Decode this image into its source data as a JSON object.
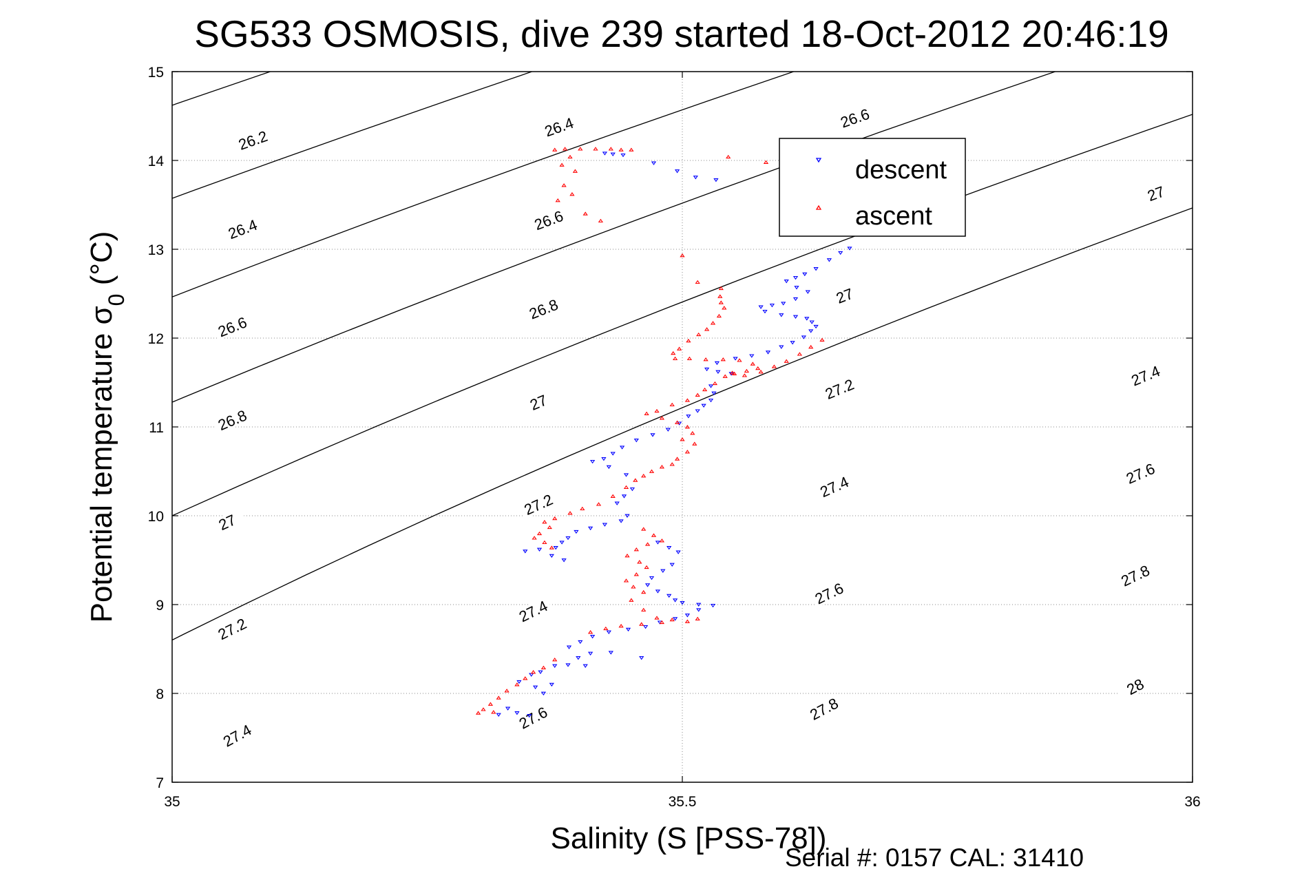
{
  "chart_data": {
    "type": "scatter",
    "title": "SG533 OSMOSIS, dive 239 started 18-Oct-2012 20:46:19",
    "xlabel": "Salinity (S [PSS-78])",
    "ylabel_main": "Potential temperature σ",
    "ylabel_sub": "0",
    "ylabel_unit": " (°C)",
    "xlim": [
      35,
      36
    ],
    "ylim": [
      7,
      15
    ],
    "x_ticks": [
      35,
      35.5,
      36
    ],
    "x_tick_labels": [
      "35",
      "35.5",
      "36"
    ],
    "y_ticks": [
      7,
      8,
      9,
      10,
      11,
      12,
      13,
      14,
      15
    ],
    "y_tick_labels": [
      "7",
      "8",
      "9",
      "10",
      "11",
      "12",
      "13",
      "14",
      "15"
    ],
    "grid": "dotted",
    "legend_position": "top-right",
    "serial_text": "Serial #: 0157  CAL: 31410",
    "colors": {
      "descent": "#0000ff",
      "ascent": "#ff0000",
      "contour": "#000000"
    },
    "isopycnals": {
      "levels": [
        26.2,
        26.4,
        26.6,
        26.8,
        27,
        27.2,
        27.4,
        27.6,
        27.8,
        28
      ],
      "labels": [
        {
          "text": "26.2",
          "s": 35.08,
          "t": 14.2
        },
        {
          "text": "26.4",
          "s": 35.07,
          "t": 13.2
        },
        {
          "text": "26.6",
          "s": 35.06,
          "t": 12.1
        },
        {
          "text": "26.8",
          "s": 35.06,
          "t": 11.05
        },
        {
          "text": "27",
          "s": 35.055,
          "t": 9.9
        },
        {
          "text": "27.2",
          "s": 35.06,
          "t": 8.7
        },
        {
          "text": "27.4",
          "s": 35.065,
          "t": 7.5
        },
        {
          "text": "26.4",
          "s": 35.38,
          "t": 14.35
        },
        {
          "text": "26.6",
          "s": 35.37,
          "t": 13.3
        },
        {
          "text": "26.8",
          "s": 35.365,
          "t": 12.3
        },
        {
          "text": "27",
          "s": 35.36,
          "t": 11.25
        },
        {
          "text": "27.2",
          "s": 35.36,
          "t": 10.1
        },
        {
          "text": "27.4",
          "s": 35.355,
          "t": 8.9
        },
        {
          "text": "27.6",
          "s": 35.355,
          "t": 7.7
        },
        {
          "text": "26.6",
          "s": 35.67,
          "t": 14.45
        },
        {
          "text": "27",
          "s": 35.66,
          "t": 12.45
        },
        {
          "text": "27.2",
          "s": 35.655,
          "t": 11.4
        },
        {
          "text": "27.4",
          "s": 35.65,
          "t": 10.3
        },
        {
          "text": "27.6",
          "s": 35.645,
          "t": 9.1
        },
        {
          "text": "27.8",
          "s": 35.64,
          "t": 7.8
        },
        {
          "text": "27",
          "s": 35.965,
          "t": 13.6
        },
        {
          "text": "27.4",
          "s": 35.955,
          "t": 11.55
        },
        {
          "text": "27.6",
          "s": 35.95,
          "t": 10.45
        },
        {
          "text": "27.8",
          "s": 35.945,
          "t": 9.3
        },
        {
          "text": "28",
          "s": 35.945,
          "t": 8.05
        }
      ]
    },
    "series": [
      {
        "name": "descent",
        "marker": "triangle-down",
        "points": [
          [
            35.424,
            14.08
          ],
          [
            35.432,
            14.07
          ],
          [
            35.442,
            14.06
          ],
          [
            35.472,
            13.97
          ],
          [
            35.495,
            13.88
          ],
          [
            35.513,
            13.81
          ],
          [
            35.533,
            13.78
          ],
          [
            35.664,
            13.01
          ],
          [
            35.655,
            12.96
          ],
          [
            35.644,
            12.88
          ],
          [
            35.631,
            12.78
          ],
          [
            35.62,
            12.72
          ],
          [
            35.611,
            12.68
          ],
          [
            35.602,
            12.64
          ],
          [
            35.612,
            12.57
          ],
          [
            35.623,
            12.52
          ],
          [
            35.611,
            12.44
          ],
          [
            35.599,
            12.39
          ],
          [
            35.588,
            12.37
          ],
          [
            35.577,
            12.35
          ],
          [
            35.581,
            12.3
          ],
          [
            35.597,
            12.26
          ],
          [
            35.611,
            12.24
          ],
          [
            35.622,
            12.22
          ],
          [
            35.627,
            12.18
          ],
          [
            35.631,
            12.13
          ],
          [
            35.626,
            12.08
          ],
          [
            35.619,
            12.01
          ],
          [
            35.608,
            11.95
          ],
          [
            35.597,
            11.9
          ],
          [
            35.584,
            11.84
          ],
          [
            35.568,
            11.8
          ],
          [
            35.552,
            11.77
          ],
          [
            35.534,
            11.72
          ],
          [
            35.524,
            11.65
          ],
          [
            35.535,
            11.62
          ],
          [
            35.548,
            11.6
          ],
          [
            35.528,
            11.46
          ],
          [
            35.531,
            11.38
          ],
          [
            35.528,
            11.3
          ],
          [
            35.521,
            11.24
          ],
          [
            35.515,
            11.18
          ],
          [
            35.506,
            11.12
          ],
          [
            35.497,
            11.04
          ],
          [
            35.486,
            10.97
          ],
          [
            35.471,
            10.91
          ],
          [
            35.455,
            10.85
          ],
          [
            35.441,
            10.77
          ],
          [
            35.432,
            10.7
          ],
          [
            35.423,
            10.64
          ],
          [
            35.412,
            10.61
          ],
          [
            35.428,
            10.55
          ],
          [
            35.445,
            10.46
          ],
          [
            35.451,
            10.3
          ],
          [
            35.443,
            10.22
          ],
          [
            35.436,
            10.14
          ],
          [
            35.446,
            10.0
          ],
          [
            35.44,
            9.94
          ],
          [
            35.424,
            9.9
          ],
          [
            35.41,
            9.86
          ],
          [
            35.396,
            9.82
          ],
          [
            35.388,
            9.75
          ],
          [
            35.382,
            9.7
          ],
          [
            35.376,
            9.64
          ],
          [
            35.36,
            9.62
          ],
          [
            35.346,
            9.6
          ],
          [
            35.372,
            9.55
          ],
          [
            35.384,
            9.5
          ],
          [
            35.476,
            9.7
          ],
          [
            35.487,
            9.64
          ],
          [
            35.496,
            9.59
          ],
          [
            35.49,
            9.45
          ],
          [
            35.481,
            9.38
          ],
          [
            35.47,
            9.3
          ],
          [
            35.466,
            9.22
          ],
          [
            35.476,
            9.15
          ],
          [
            35.487,
            9.1
          ],
          [
            35.493,
            9.05
          ],
          [
            35.5,
            9.02
          ],
          [
            35.516,
            9.0
          ],
          [
            35.53,
            8.99
          ],
          [
            35.516,
            8.94
          ],
          [
            35.505,
            8.88
          ],
          [
            35.493,
            8.84
          ],
          [
            35.478,
            8.8
          ],
          [
            35.464,
            8.75
          ],
          [
            35.447,
            8.72
          ],
          [
            35.428,
            8.69
          ],
          [
            35.412,
            8.64
          ],
          [
            35.4,
            8.58
          ],
          [
            35.389,
            8.52
          ],
          [
            35.41,
            8.45
          ],
          [
            35.398,
            8.4
          ],
          [
            35.388,
            8.32
          ],
          [
            35.375,
            8.31
          ],
          [
            35.361,
            8.24
          ],
          [
            35.352,
            8.21
          ],
          [
            35.34,
            8.13
          ],
          [
            35.356,
            8.07
          ],
          [
            35.364,
            8.0
          ],
          [
            35.329,
            7.83
          ],
          [
            35.338,
            7.78
          ],
          [
            35.32,
            7.76
          ],
          [
            35.43,
            8.46
          ],
          [
            35.46,
            8.4
          ],
          [
            35.405,
            8.31
          ],
          [
            35.372,
            8.1
          ],
          [
            35.35,
            7.75
          ]
        ]
      },
      {
        "name": "ascent",
        "marker": "triangle-up",
        "points": [
          [
            35.385,
            14.13
          ],
          [
            35.4,
            14.13
          ],
          [
            35.415,
            14.13
          ],
          [
            35.43,
            14.13
          ],
          [
            35.44,
            14.12
          ],
          [
            35.45,
            14.12
          ],
          [
            35.375,
            14.12
          ],
          [
            35.39,
            14.04
          ],
          [
            35.382,
            13.95
          ],
          [
            35.395,
            13.88
          ],
          [
            35.384,
            13.72
          ],
          [
            35.392,
            13.62
          ],
          [
            35.378,
            13.55
          ],
          [
            35.405,
            13.4
          ],
          [
            35.42,
            13.32
          ],
          [
            35.545,
            14.04
          ],
          [
            35.582,
            13.98
          ],
          [
            35.5,
            12.93
          ],
          [
            35.515,
            12.63
          ],
          [
            35.538,
            12.56
          ],
          [
            35.537,
            12.47
          ],
          [
            35.538,
            12.4
          ],
          [
            35.541,
            12.34
          ],
          [
            35.536,
            12.25
          ],
          [
            35.53,
            12.17
          ],
          [
            35.524,
            12.1
          ],
          [
            35.516,
            12.04
          ],
          [
            35.506,
            11.97
          ],
          [
            35.497,
            11.88
          ],
          [
            35.491,
            11.83
          ],
          [
            35.493,
            11.77
          ],
          [
            35.507,
            11.77
          ],
          [
            35.523,
            11.76
          ],
          [
            35.54,
            11.76
          ],
          [
            35.556,
            11.75
          ],
          [
            35.569,
            11.71
          ],
          [
            35.574,
            11.66
          ],
          [
            35.563,
            11.63
          ],
          [
            35.551,
            11.6
          ],
          [
            35.561,
            11.58
          ],
          [
            35.577,
            11.62
          ],
          [
            35.59,
            11.68
          ],
          [
            35.602,
            11.74
          ],
          [
            35.615,
            11.82
          ],
          [
            35.626,
            11.9
          ],
          [
            35.637,
            11.98
          ],
          [
            35.549,
            11.61
          ],
          [
            35.542,
            11.57
          ],
          [
            35.532,
            11.49
          ],
          [
            35.522,
            11.42
          ],
          [
            35.515,
            11.36
          ],
          [
            35.505,
            11.3
          ],
          [
            35.49,
            11.25
          ],
          [
            35.475,
            11.18
          ],
          [
            35.465,
            11.15
          ],
          [
            35.48,
            11.1
          ],
          [
            35.495,
            11.05
          ],
          [
            35.505,
            11.0
          ],
          [
            35.51,
            10.93
          ],
          [
            35.5,
            10.86
          ],
          [
            35.512,
            10.81
          ],
          [
            35.505,
            10.72
          ],
          [
            35.495,
            10.64
          ],
          [
            35.49,
            10.58
          ],
          [
            35.48,
            10.55
          ],
          [
            35.47,
            10.5
          ],
          [
            35.462,
            10.45
          ],
          [
            35.454,
            10.4
          ],
          [
            35.445,
            10.32
          ],
          [
            35.432,
            10.22
          ],
          [
            35.418,
            10.13
          ],
          [
            35.402,
            10.08
          ],
          [
            35.39,
            10.03
          ],
          [
            35.375,
            9.97
          ],
          [
            35.365,
            9.93
          ],
          [
            35.37,
            9.87
          ],
          [
            35.36,
            9.8
          ],
          [
            35.355,
            9.75
          ],
          [
            35.365,
            9.7
          ],
          [
            35.372,
            9.64
          ],
          [
            35.462,
            9.85
          ],
          [
            35.472,
            9.78
          ],
          [
            35.48,
            9.72
          ],
          [
            35.466,
            9.68
          ],
          [
            35.455,
            9.62
          ],
          [
            35.446,
            9.55
          ],
          [
            35.458,
            9.48
          ],
          [
            35.465,
            9.42
          ],
          [
            35.455,
            9.34
          ],
          [
            35.445,
            9.27
          ],
          [
            35.452,
            9.2
          ],
          [
            35.462,
            9.14
          ],
          [
            35.45,
            9.05
          ],
          [
            35.462,
            8.94
          ],
          [
            35.475,
            8.85
          ],
          [
            35.49,
            8.83
          ],
          [
            35.505,
            8.81
          ],
          [
            35.515,
            8.84
          ],
          [
            35.48,
            8.8
          ],
          [
            35.46,
            8.78
          ],
          [
            35.44,
            8.76
          ],
          [
            35.425,
            8.73
          ],
          [
            35.41,
            8.69
          ],
          [
            35.375,
            8.38
          ],
          [
            35.364,
            8.29
          ],
          [
            35.354,
            8.24
          ],
          [
            35.346,
            8.17
          ],
          [
            35.338,
            8.1
          ],
          [
            35.328,
            8.03
          ],
          [
            35.32,
            7.95
          ],
          [
            35.312,
            7.88
          ],
          [
            35.305,
            7.82
          ],
          [
            35.315,
            7.79
          ],
          [
            35.3,
            7.78
          ]
        ]
      }
    ]
  }
}
